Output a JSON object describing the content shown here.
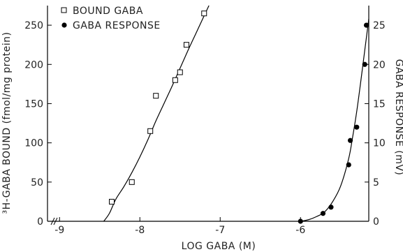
{
  "chart_data": {
    "type": "scatter",
    "xlabel": "LOG GABA (M)",
    "x_ticks": [
      -9,
      -8,
      -7,
      -6
    ],
    "x_tick_labels": [
      "-9",
      "-8",
      "-7",
      "-6"
    ],
    "xlim": [
      -9.15,
      -5.15
    ],
    "y_left": {
      "label": "³H-GABA BOUND (fmol/mg protein)",
      "ticks": [
        0,
        50,
        100,
        150,
        200,
        250
      ],
      "tick_labels": [
        "0",
        "50",
        "100",
        "150",
        "200",
        "250"
      ],
      "ylim": [
        0,
        275
      ]
    },
    "y_right": {
      "label": "GABA RESPONSE (mV)",
      "ticks": [
        0,
        5,
        10,
        15,
        20,
        25
      ],
      "tick_labels": [
        "0",
        "5",
        "10",
        "15",
        "20",
        "25"
      ],
      "ylim": [
        0,
        27.5
      ]
    },
    "legend_position": "top-left",
    "series": [
      {
        "name": "BOUND GABA",
        "marker": "open-square",
        "axis": "left",
        "points": [
          [
            -8.35,
            25
          ],
          [
            -8.1,
            50
          ],
          [
            -7.87,
            115
          ],
          [
            -7.8,
            160
          ],
          [
            -7.56,
            180
          ],
          [
            -7.5,
            190
          ],
          [
            -7.42,
            225
          ],
          [
            -7.2,
            265
          ]
        ],
        "curve": [
          [
            -8.45,
            0
          ],
          [
            -8.38,
            10
          ],
          [
            -8.3,
            28
          ],
          [
            -8.2,
            44
          ],
          [
            -8.1,
            62
          ],
          [
            -8.0,
            82
          ],
          [
            -7.9,
            104
          ],
          [
            -7.8,
            128
          ],
          [
            -7.7,
            150
          ],
          [
            -7.6,
            172
          ],
          [
            -7.5,
            195
          ],
          [
            -7.4,
            218
          ],
          [
            -7.3,
            240
          ],
          [
            -7.2,
            262
          ],
          [
            -7.14,
            275
          ]
        ]
      },
      {
        "name": "GABA RESPONSE",
        "marker": "filled-circle",
        "axis": "right",
        "points": [
          [
            -6.0,
            0
          ],
          [
            -5.72,
            1
          ],
          [
            -5.62,
            1.8
          ],
          [
            -5.4,
            7.2
          ],
          [
            -5.38,
            10.3
          ],
          [
            -5.3,
            12
          ],
          [
            -5.2,
            20
          ],
          [
            -5.18,
            25
          ]
        ],
        "curve": [
          [
            -6.0,
            0
          ],
          [
            -5.9,
            0.2
          ],
          [
            -5.8,
            0.6
          ],
          [
            -5.7,
            1.2
          ],
          [
            -5.6,
            2.5
          ],
          [
            -5.5,
            4.5
          ],
          [
            -5.4,
            8.0
          ],
          [
            -5.35,
            10.8
          ],
          [
            -5.3,
            14.0
          ],
          [
            -5.25,
            17.8
          ],
          [
            -5.2,
            21.8
          ],
          [
            -5.15,
            25.8
          ]
        ]
      }
    ]
  }
}
